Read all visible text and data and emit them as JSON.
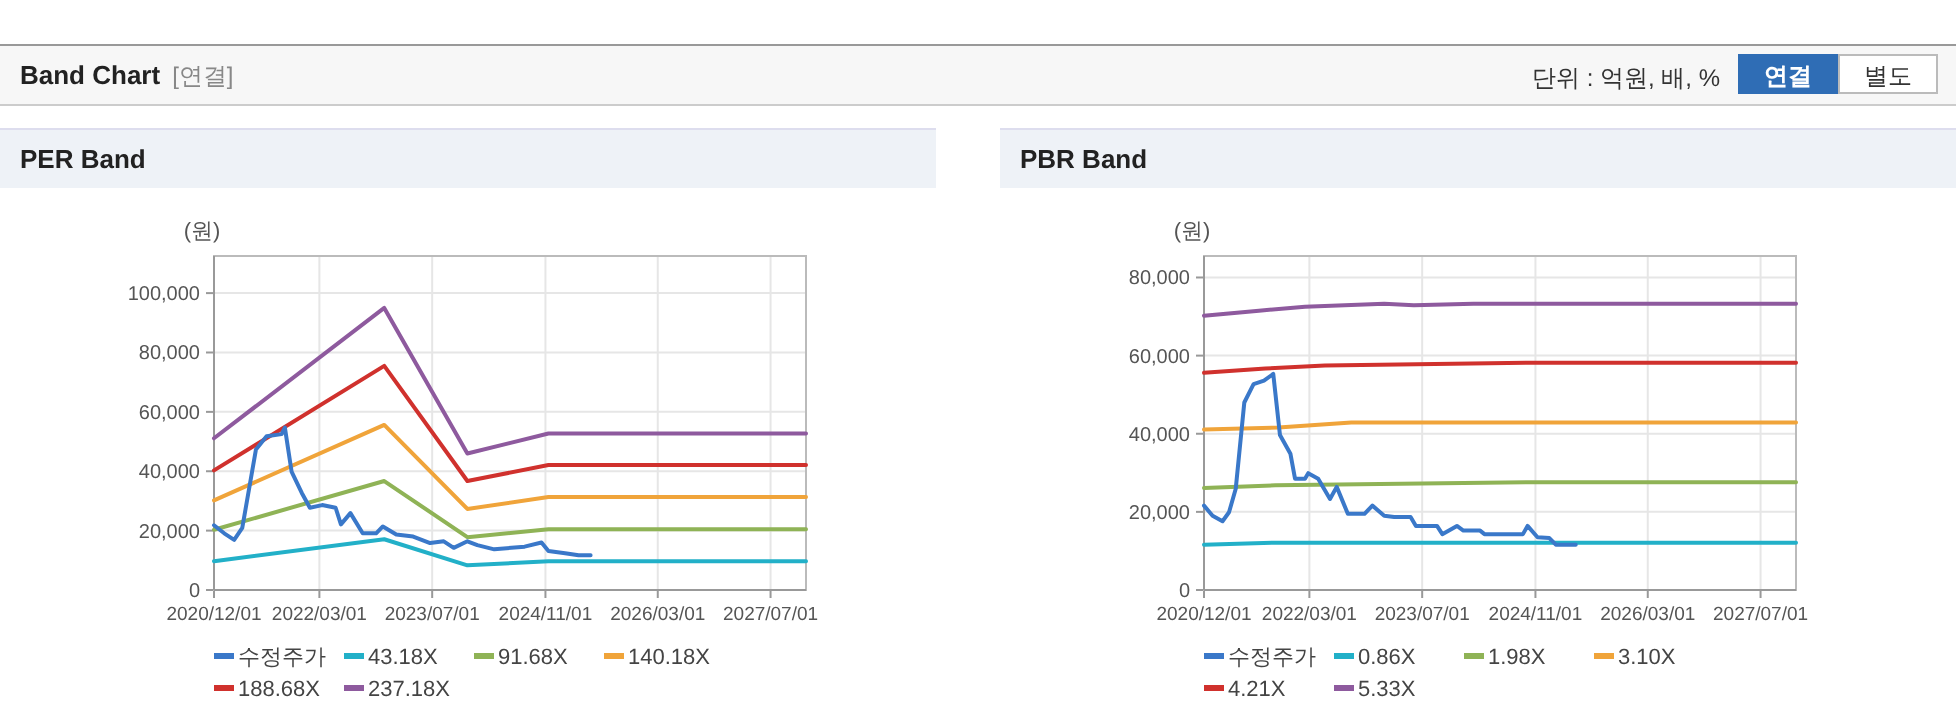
{
  "chart_data": [
    {
      "type": "other",
      "title": "Band Chart",
      "annotations": [
        "[연결]",
        "단위 : 억원, 배, %",
        "연결",
        "별도"
      ]
    },
    {
      "type": "line",
      "title": "PER Band",
      "ylabel": "(원)",
      "grid": true,
      "legend": "bottom",
      "xlim": [
        "2020-12-01",
        "2027-12-01"
      ],
      "xticks": [
        {
          "value": "2020-12-01",
          "label": "2020/12/01"
        },
        {
          "value": "2022-03-01",
          "label": "2022/03/01"
        },
        {
          "value": "2023-07-01",
          "label": "2023/07/01"
        },
        {
          "value": "2024-11-01",
          "label": "2024/11/01"
        },
        {
          "value": "2026-03-01",
          "label": "2026/03/01"
        },
        {
          "value": "2027-07-01",
          "label": "2027/07/01"
        }
      ],
      "ylim": [
        0,
        112500
      ],
      "yticks": [
        {
          "value": 0,
          "label": "0"
        },
        {
          "value": 20000,
          "label": "20,000"
        },
        {
          "value": 40000,
          "label": "40,000"
        },
        {
          "value": 60000,
          "label": "60,000"
        },
        {
          "value": 80000,
          "label": "80,000"
        },
        {
          "value": 100000,
          "label": "100,000"
        }
      ],
      "series": [
        {
          "name": "수정주가",
          "color": "#3a78c9",
          "x": [
            "2020-12-01",
            "2021-01-14",
            "2021-02-26",
            "2021-04-02",
            "2021-05-31",
            "2021-07-16",
            "2021-09-19",
            "2021-10-03",
            "2021-11-01",
            "2021-12-15",
            "2022-01-19",
            "2022-03-13",
            "2022-05-10",
            "2022-06-02",
            "2022-07-13",
            "2022-09-04",
            "2022-11-01",
            "2022-11-30",
            "2023-01-27",
            "2023-04-10",
            "2023-06-22",
            "2023-08-20",
            "2023-10-02",
            "2023-11-30",
            "2024-01-12",
            "2024-03-25",
            "2024-08-03",
            "2024-10-15",
            "2024-11-14",
            "2025-01-25",
            "2025-03-24",
            "2025-05-15"
          ],
          "values": [
            21800,
            19100,
            16900,
            20900,
            47300,
            51800,
            52500,
            54700,
            39900,
            32700,
            27700,
            28600,
            27700,
            22100,
            25900,
            19100,
            19100,
            21400,
            18700,
            18000,
            15800,
            16400,
            14200,
            16400,
            15100,
            13700,
            14600,
            16000,
            13100,
            12400,
            11700,
            11700
          ]
        },
        {
          "name": "43.18X",
          "color": "#22b0c8",
          "x": [
            "2020-12-01",
            "2022-12-06",
            "2023-11-30",
            "2024-11-14",
            "2027-12-01"
          ],
          "values": [
            9700,
            17100,
            8300,
            9700,
            9700
          ]
        },
        {
          "name": "91.68X",
          "color": "#8fb356",
          "x": [
            "2020-12-01",
            "2022-12-06",
            "2023-11-30",
            "2024-11-14",
            "2027-12-01"
          ],
          "values": [
            20300,
            36700,
            17800,
            20500,
            20500
          ]
        },
        {
          "name": "140.18X",
          "color": "#f0a43a",
          "x": [
            "2020-12-01",
            "2022-12-06",
            "2023-11-30",
            "2024-11-14",
            "2027-12-01"
          ],
          "values": [
            30200,
            55600,
            27300,
            31300,
            31300
          ]
        },
        {
          "name": "188.68X",
          "color": "#d0312d",
          "x": [
            "2020-12-01",
            "2022-12-06",
            "2023-11-30",
            "2024-11-14",
            "2027-12-01"
          ],
          "values": [
            40300,
            75500,
            36700,
            42100,
            42100
          ]
        },
        {
          "name": "237.18X",
          "color": "#8e5a9e",
          "x": [
            "2020-12-01",
            "2022-12-06",
            "2023-11-30",
            "2024-11-14",
            "2027-12-01"
          ],
          "values": [
            51100,
            95000,
            46000,
            52700,
            52700
          ]
        }
      ]
    },
    {
      "type": "line",
      "title": "PBR Band",
      "ylabel": "(원)",
      "grid": true,
      "legend": "bottom",
      "xlim": [
        "2020-12-01",
        "2027-12-01"
      ],
      "xticks": [
        {
          "value": "2020-12-01",
          "label": "2020/12/01"
        },
        {
          "value": "2022-03-01",
          "label": "2022/03/01"
        },
        {
          "value": "2023-07-01",
          "label": "2023/07/01"
        },
        {
          "value": "2024-11-01",
          "label": "2024/11/01"
        },
        {
          "value": "2026-03-01",
          "label": "2026/03/01"
        },
        {
          "value": "2027-07-01",
          "label": "2027/07/01"
        }
      ],
      "ylim": [
        0,
        85500
      ],
      "yticks": [
        {
          "value": 0,
          "label": "0"
        },
        {
          "value": 20000,
          "label": "20,000"
        },
        {
          "value": 40000,
          "label": "40,000"
        },
        {
          "value": 60000,
          "label": "60,000"
        },
        {
          "value": 80000,
          "label": "80,000"
        }
      ],
      "series": [
        {
          "name": "수정주가",
          "color": "#3a78c9",
          "x": [
            "2020-12-01",
            "2021-01-07",
            "2021-02-19",
            "2021-03-19",
            "2021-04-17",
            "2021-05-24",
            "2021-07-03",
            "2021-08-17",
            "2021-09-26",
            "2021-10-25",
            "2021-12-09",
            "2021-12-29",
            "2022-02-10",
            "2022-02-24",
            "2022-04-08",
            "2022-05-29",
            "2022-06-27",
            "2022-08-14",
            "2022-10-25",
            "2022-11-28",
            "2023-01-18",
            "2023-03-02",
            "2023-05-12",
            "2023-06-04",
            "2023-09-03",
            "2023-09-26",
            "2023-11-28",
            "2023-12-26",
            "2024-03-07",
            "2024-03-26",
            "2024-09-08",
            "2024-09-28",
            "2024-11-10",
            "2024-12-31",
            "2025-01-28",
            "2025-04-24"
          ],
          "values": [
            21600,
            19000,
            17600,
            19900,
            25900,
            48000,
            52700,
            53600,
            55300,
            39700,
            34900,
            28500,
            28500,
            29900,
            28500,
            23300,
            26400,
            19500,
            19500,
            21600,
            19000,
            18700,
            18700,
            16400,
            16400,
            14300,
            16400,
            15200,
            15200,
            14300,
            14300,
            16400,
            13500,
            13300,
            11600,
            11600
          ]
        },
        {
          "name": "0.86X",
          "color": "#22b0c8",
          "x": [
            "2020-12-01",
            "2021-09-21",
            "2027-12-01"
          ],
          "values": [
            11600,
            12100,
            12100
          ]
        },
        {
          "name": "1.98X",
          "color": "#8fb356",
          "x": [
            "2020-12-01",
            "2021-10-05",
            "2024-11-04",
            "2027-12-01"
          ],
          "values": [
            26100,
            26800,
            27600,
            27600
          ]
        },
        {
          "name": "3.10X",
          "color": "#f0a43a",
          "x": [
            "2020-12-01",
            "2021-10-19",
            "2022-08-29",
            "2027-12-01"
          ],
          "values": [
            41100,
            41600,
            42900,
            42900
          ]
        },
        {
          "name": "4.21X",
          "color": "#d0312d",
          "x": [
            "2020-12-01",
            "2021-08-23",
            "2022-05-07",
            "2024-10-06",
            "2027-12-01"
          ],
          "values": [
            55600,
            56700,
            57500,
            58200,
            58200
          ]
        },
        {
          "name": "5.33X",
          "color": "#8e5a9e",
          "x": [
            "2020-12-01",
            "2021-07-26",
            "2022-02-10",
            "2023-01-18",
            "2023-05-26",
            "2024-02-07",
            "2027-12-01"
          ],
          "values": [
            70200,
            71500,
            72500,
            73300,
            72900,
            73300,
            73300
          ]
        }
      ]
    }
  ]
}
